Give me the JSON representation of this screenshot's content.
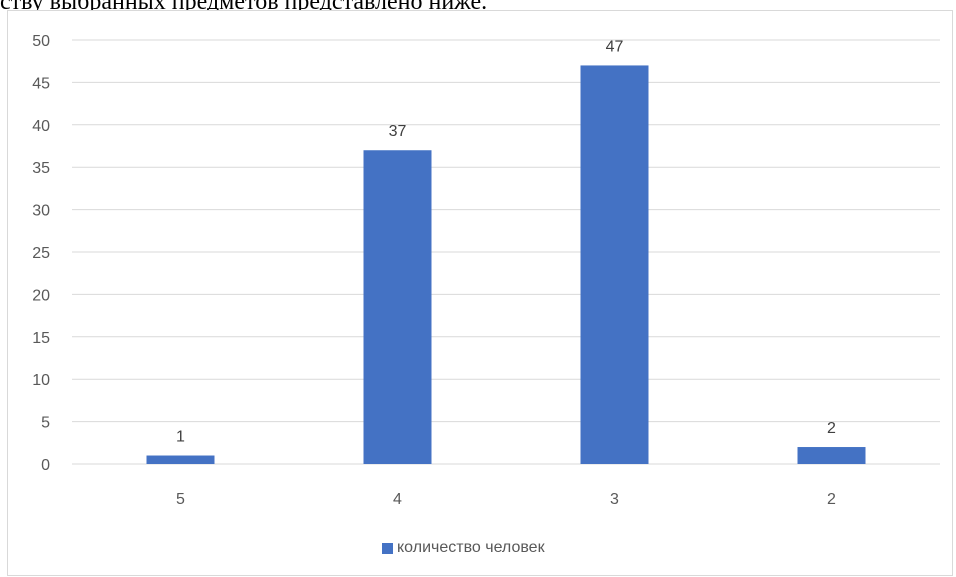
{
  "caption": "ству выбранных предметов представлено ниже.",
  "chart_data": {
    "type": "bar",
    "categories": [
      "5",
      "4",
      "3",
      "2"
    ],
    "series": [
      {
        "name": "количество человек",
        "values": [
          1,
          37,
          47,
          2
        ],
        "color": "#4472C4"
      }
    ],
    "y_ticks": [
      "0",
      "5",
      "10",
      "15",
      "20",
      "25",
      "30",
      "35",
      "40",
      "45",
      "50"
    ],
    "ylim": [
      0,
      50
    ],
    "grid": true,
    "legend_position": "bottom",
    "data_labels": [
      "1",
      "37",
      "47",
      "2"
    ]
  }
}
